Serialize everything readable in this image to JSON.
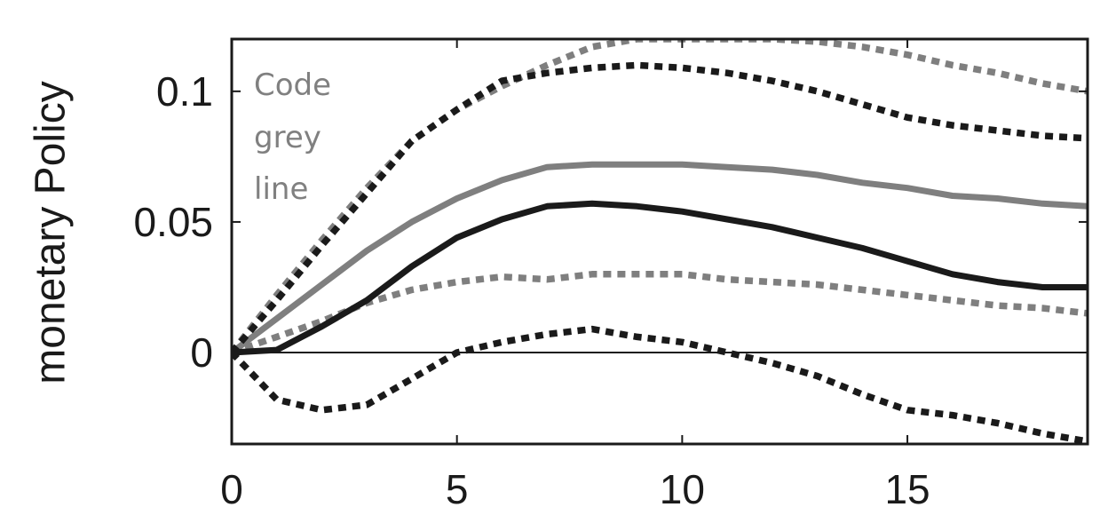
{
  "chart_data": {
    "type": "line",
    "ylabel": "monetary Policy",
    "xlabel": "",
    "title": "",
    "xlim": [
      0,
      19
    ],
    "ylim": [
      -0.035,
      0.12
    ],
    "x_ticks": [
      "0",
      "5",
      "10",
      "15"
    ],
    "y_ticks": [
      "0",
      "0.05",
      "0.1"
    ],
    "grid": false,
    "zero_line": true,
    "annotation": [
      "Code",
      "grey",
      "line"
    ],
    "x": [
      0,
      1,
      2,
      3,
      4,
      5,
      6,
      7,
      8,
      9,
      10,
      11,
      12,
      13,
      14,
      15,
      16,
      17,
      18,
      19
    ],
    "series": [
      {
        "color": "#7f7f7f",
        "style": "solid",
        "values": [
          0.0,
          0.013,
          0.026,
          0.039,
          0.05,
          0.059,
          0.066,
          0.071,
          0.072,
          0.072,
          0.072,
          0.071,
          0.07,
          0.068,
          0.065,
          0.063,
          0.06,
          0.059,
          0.057,
          0.056
        ]
      },
      {
        "color": "#7f7f7f",
        "style": "dotted",
        "values": [
          0.0,
          0.022,
          0.043,
          0.063,
          0.081,
          0.093,
          0.102,
          0.11,
          0.117,
          0.12,
          0.12,
          0.12,
          0.12,
          0.119,
          0.117,
          0.114,
          0.11,
          0.107,
          0.103,
          0.1
        ]
      },
      {
        "color": "#7f7f7f",
        "style": "dotted",
        "values": [
          0.0,
          0.006,
          0.012,
          0.019,
          0.024,
          0.027,
          0.029,
          0.028,
          0.03,
          0.03,
          0.03,
          0.028,
          0.027,
          0.026,
          0.024,
          0.022,
          0.02,
          0.018,
          0.017,
          0.015
        ]
      },
      {
        "color": "#1a1a1a",
        "style": "solid",
        "values": [
          0.0,
          0.001,
          0.01,
          0.02,
          0.033,
          0.044,
          0.051,
          0.056,
          0.057,
          0.056,
          0.054,
          0.051,
          0.048,
          0.044,
          0.04,
          0.035,
          0.03,
          0.027,
          0.025,
          0.025
        ]
      },
      {
        "color": "#1a1a1a",
        "style": "dotted",
        "values": [
          0.0,
          0.02,
          0.041,
          0.061,
          0.081,
          0.093,
          0.104,
          0.107,
          0.109,
          0.11,
          0.109,
          0.107,
          0.104,
          0.1,
          0.095,
          0.09,
          0.087,
          0.085,
          0.083,
          0.082
        ]
      },
      {
        "color": "#1a1a1a",
        "style": "dotted",
        "values": [
          0.0,
          -0.018,
          -0.022,
          -0.02,
          -0.01,
          0.0,
          0.004,
          0.007,
          0.009,
          0.006,
          0.004,
          0.0,
          -0.004,
          -0.009,
          -0.016,
          -0.022,
          -0.024,
          -0.027,
          -0.031,
          -0.034
        ]
      }
    ]
  }
}
